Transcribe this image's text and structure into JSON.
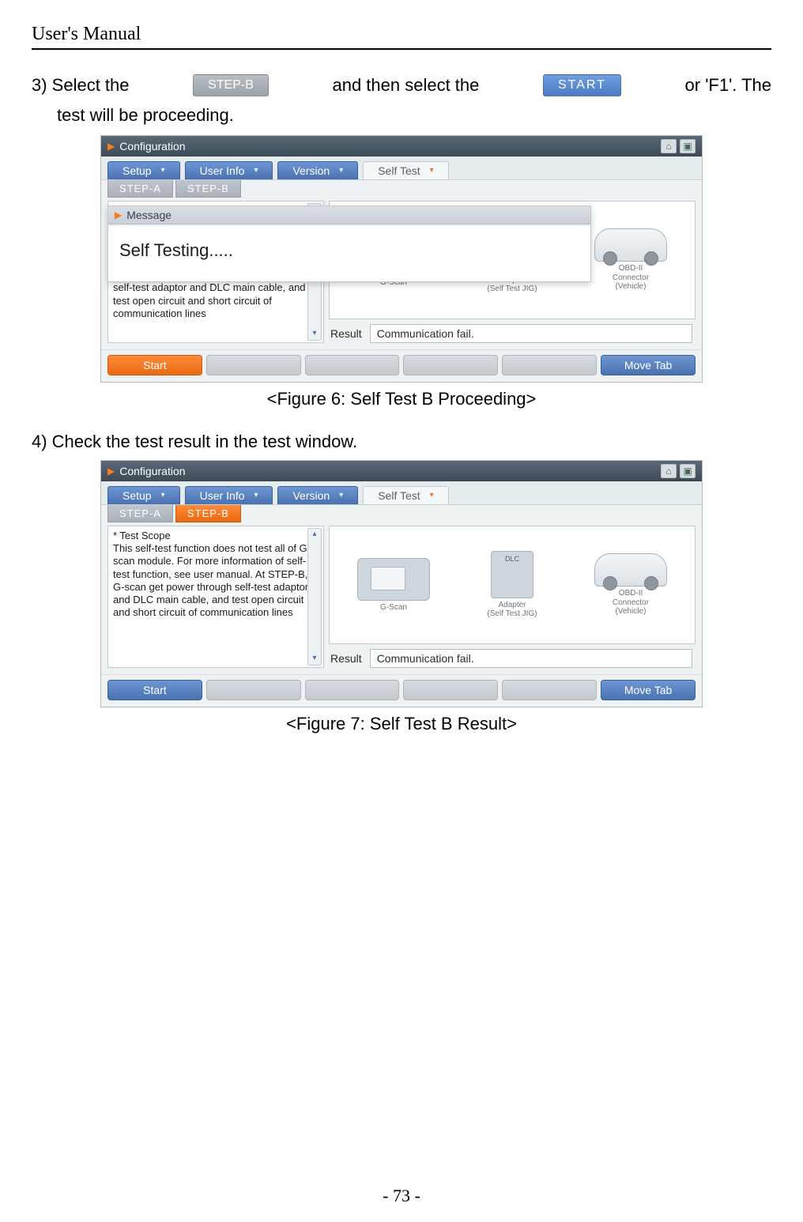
{
  "doc": {
    "header_title": "User's Manual",
    "page_number": "- 73 -"
  },
  "step3": {
    "pre": "3) Select  the",
    "mid": "and  then  select  the",
    "post": "or  'F1'.  The",
    "sub": "test will be proceeding.",
    "btn_stepb": "STEP-B",
    "btn_start": "START"
  },
  "step4": {
    "text": "4) Check the test result in the test window."
  },
  "captions": {
    "fig6": "<Figure 6: Self Test B Proceeding>",
    "fig7": "<Figure 7: Self Test B Result>"
  },
  "shot": {
    "title": "Configuration",
    "tabs": {
      "setup": "Setup",
      "user": "User Info",
      "version": "Version",
      "selftest": "Self Test"
    },
    "subtabs": {
      "a": "STEP-A",
      "b": "STEP-B"
    },
    "scope_title": "* Test Scope",
    "scope_full": " This self-test function does not test all of G-scan module. For more information of self-test function, see user manual. At STEP-B, G-scan get power through self-test adaptor and DLC main cable, and test open circuit and short circuit of communication lines",
    "scope_cut": " This self-test function does not test all of G-scan module. For more information of s\nsee user manu\nG-scan get pow\nself-test adaptor and DLC main cable, and test open circuit and short circuit of communication lines",
    "dev": {
      "gscan": "G-Scan",
      "adapter": "Adapter\n(Self Test JIG)",
      "obd": "OBD-II\nConnector\n(Vehicle)"
    },
    "result_label": "Result",
    "result_value": "Communication fail.",
    "btns": {
      "start": "Start",
      "move": "Move Tab"
    },
    "msg": {
      "header": "Message",
      "body": "Self Testing....."
    }
  },
  "colors": {
    "chip_grey": "#a9b1b8",
    "chip_blue": "#5b86c8",
    "tab_blue": "#5b86c8",
    "tab_orange": "#f07a22"
  }
}
